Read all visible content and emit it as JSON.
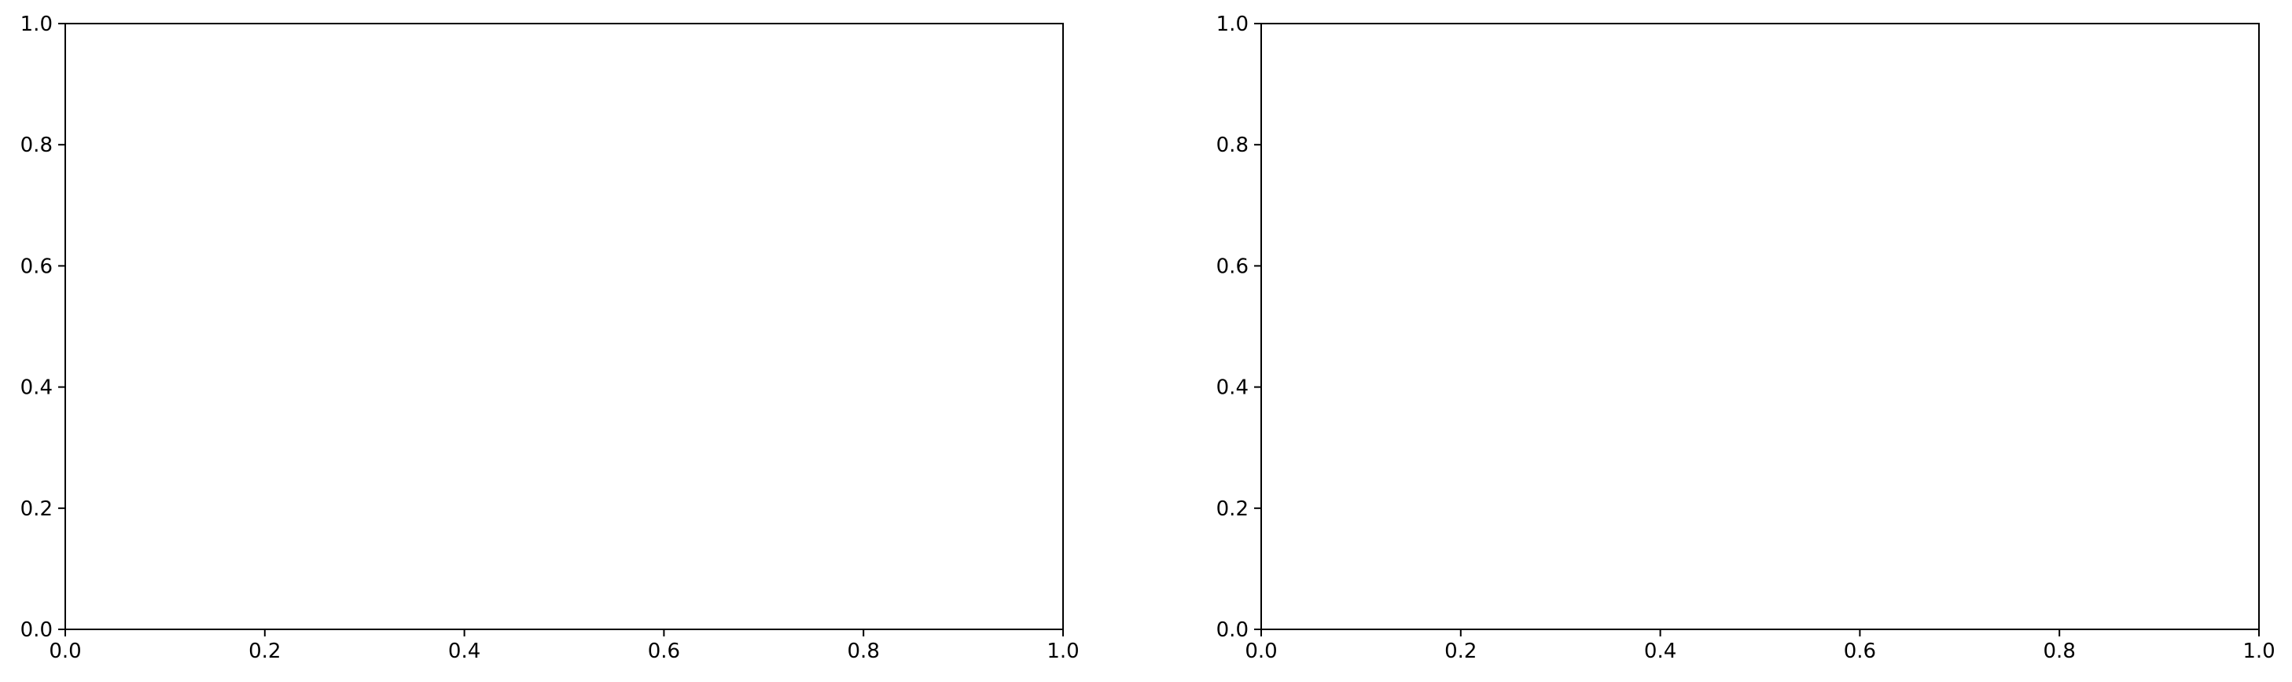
{
  "chart_data": [
    {
      "type": "line",
      "title": "",
      "xlabel": "",
      "ylabel": "",
      "xlim": [
        0,
        1
      ],
      "ylim": [
        0,
        1
      ],
      "x_ticks": [
        "0.0",
        "0.2",
        "0.4",
        "0.6",
        "0.8",
        "1.0"
      ],
      "y_ticks": [
        "0.0",
        "0.2",
        "0.4",
        "0.6",
        "0.8",
        "1.0"
      ],
      "series": [],
      "grid": false
    },
    {
      "type": "line",
      "title": "",
      "xlabel": "",
      "ylabel": "",
      "xlim": [
        0,
        1
      ],
      "ylim": [
        0,
        1
      ],
      "x_ticks": [
        "0.0",
        "0.2",
        "0.4",
        "0.6",
        "0.8",
        "1.0"
      ],
      "y_ticks": [
        "0.0",
        "0.2",
        "0.4",
        "0.6",
        "0.8",
        "1.0"
      ],
      "series": [],
      "grid": false
    }
  ]
}
